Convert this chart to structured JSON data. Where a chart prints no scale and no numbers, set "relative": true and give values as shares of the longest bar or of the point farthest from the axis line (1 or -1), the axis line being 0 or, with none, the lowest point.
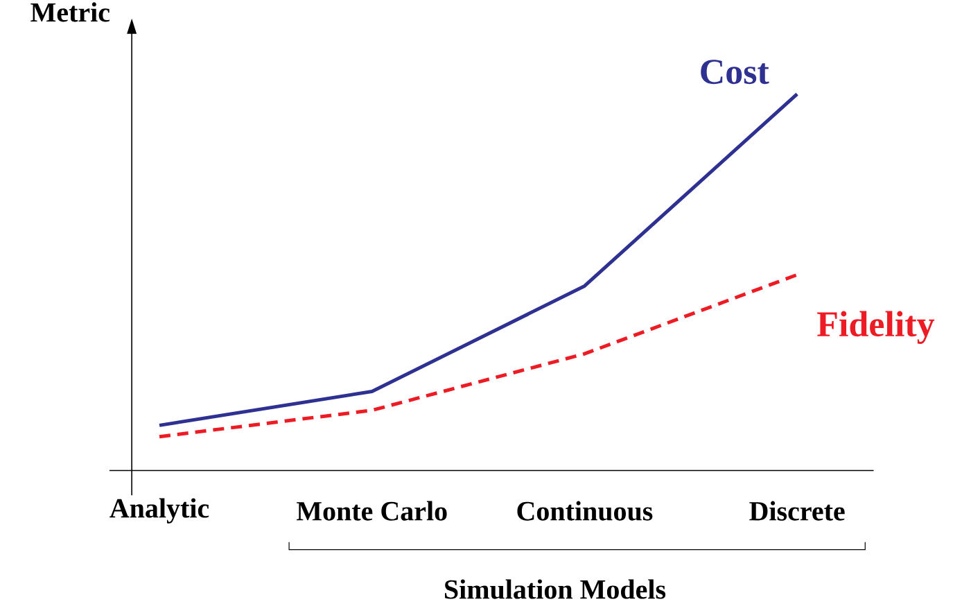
{
  "chart_data": {
    "type": "line",
    "relative": true,
    "xlabel": "Simulation Models",
    "ylabel": "Metric",
    "categories": [
      "Analytic",
      "Monte Carlo",
      "Continuous",
      "Discrete"
    ],
    "series": [
      {
        "name": "Cost",
        "color": "#2e3192",
        "line_style": "solid",
        "values": [
          0.12,
          0.21,
          0.49,
          1
        ]
      },
      {
        "name": "Fidelity",
        "color": "#ed1c24",
        "line_style": "dashed",
        "values": [
          0.09,
          0.16,
          0.31,
          0.52
        ]
      }
    ]
  }
}
